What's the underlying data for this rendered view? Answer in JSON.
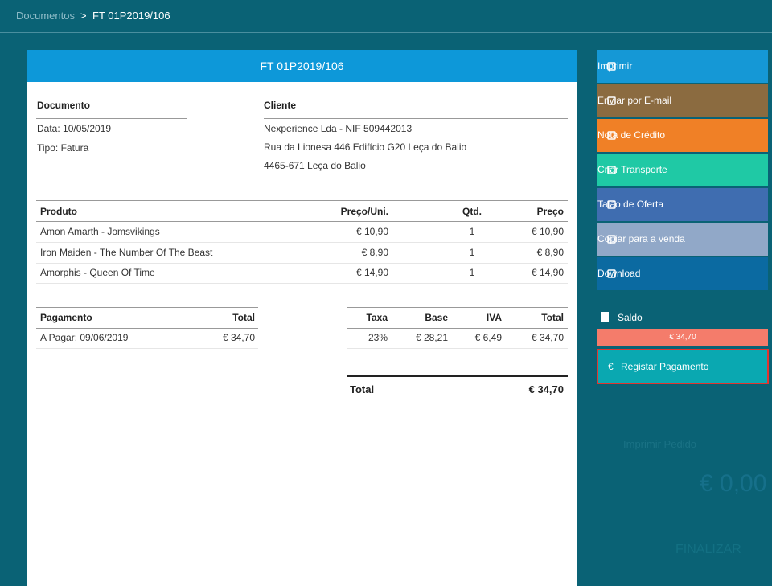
{
  "breadcrumb": {
    "parent": "Documentos",
    "separator": ">",
    "current": "FT 01P2019/106"
  },
  "document": {
    "title": "FT 01P2019/106",
    "info": {
      "heading": "Documento",
      "lines": [
        "Data: 10/05/2019",
        "Tipo: Fatura"
      ]
    },
    "client": {
      "heading": "Cliente",
      "lines": [
        "Nexperience Lda - NIF 509442013",
        "Rua da Lionesa 446 Edifício G20 Leça do Balio",
        "4465-671 Leça do Balio"
      ]
    },
    "products": {
      "headers": [
        "Produto",
        "Preço/Uni.",
        "Qtd.",
        "Preço"
      ],
      "rows": [
        [
          "Amon Amarth - Jomsvikings",
          "€ 10,90",
          "1",
          "€ 10,90"
        ],
        [
          "Iron Maiden - The Number Of The Beast",
          "€ 8,90",
          "1",
          "€ 8,90"
        ],
        [
          "Amorphis - Queen Of Time",
          "€ 14,90",
          "1",
          "€ 14,90"
        ]
      ]
    },
    "payments": {
      "headers": [
        "Pagamento",
        "Total"
      ],
      "rows": [
        [
          "A Pagar: 09/06/2019",
          "€ 34,70"
        ]
      ]
    },
    "taxes": {
      "headers": [
        "Taxa",
        "Base",
        "IVA",
        "Total"
      ],
      "rows": [
        [
          "23%",
          "€ 28,21",
          "€ 6,49",
          "€ 34,70"
        ]
      ]
    },
    "total": {
      "label": "Total",
      "value": "€ 34,70"
    }
  },
  "actions": [
    {
      "label": "Imprimir",
      "color": "#1598d6"
    },
    {
      "label": "Enviar por E-mail",
      "color": "#8b6b40"
    },
    {
      "label": "Nota de Crédito",
      "color": "#f08026"
    },
    {
      "label": "Criar Transporte",
      "color": "#1fc9a5"
    },
    {
      "label": "Talão de Oferta",
      "color": "#3f6db0"
    },
    {
      "label": "Copiar para a venda",
      "color": "#91a8c8"
    },
    {
      "label": "Download",
      "color": "#0b6aa1"
    }
  ],
  "balance": {
    "label": "Saldo",
    "value": "€ 34,70"
  },
  "register_payment": {
    "icon": "€",
    "label": "Registar Pagamento"
  },
  "background_panel": {
    "print_order": "Imprimir Pedido",
    "amount": "€ 0,00",
    "finish": "FINALIZAR"
  }
}
